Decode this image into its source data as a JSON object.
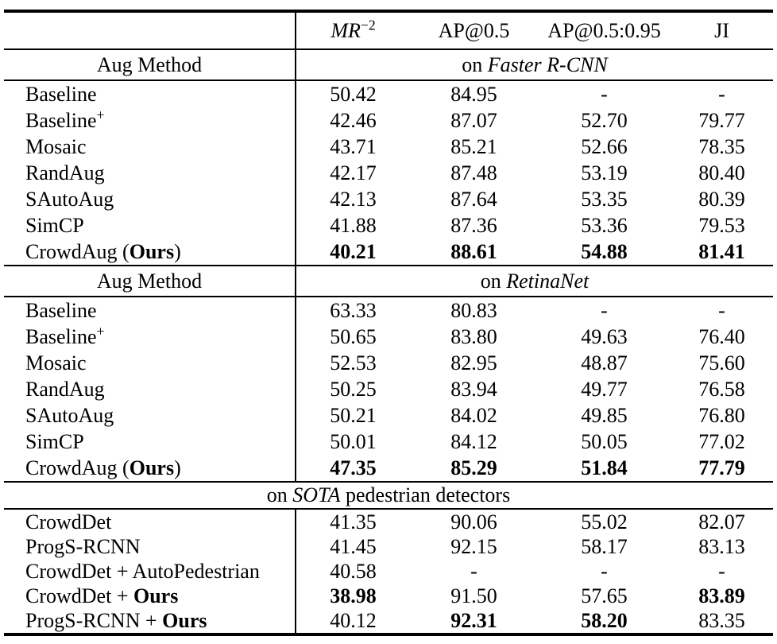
{
  "page": {
    "background": "#ffffff",
    "text_color": "#000000"
  },
  "table": {
    "metric_headers": [
      {
        "name": "col-mr",
        "segments": [
          {
            "t": "MR",
            "i": true
          },
          {
            "t": "−2",
            "sup": true
          }
        ]
      },
      {
        "name": "col-ap05",
        "segments": [
          {
            "t": "AP@0.5"
          }
        ]
      },
      {
        "name": "col-ap05095",
        "segments": [
          {
            "t": "AP@0.5:0.95"
          }
        ]
      },
      {
        "name": "col-ji",
        "segments": [
          {
            "t": "JI"
          }
        ]
      }
    ],
    "sections": [
      {
        "kind": "group",
        "left_header": "Aug Method",
        "right_header_segments": [
          {
            "t": "on "
          },
          {
            "t": "Faster R-CNN",
            "i": true
          }
        ],
        "rows": [
          {
            "method": [
              {
                "t": "Baseline"
              }
            ],
            "values": [
              {
                "t": "50.42"
              },
              {
                "t": "84.95"
              },
              {
                "t": "-"
              },
              {
                "t": "-"
              }
            ]
          },
          {
            "method": [
              {
                "t": "Baseline"
              },
              {
                "t": "+",
                "sup": true
              }
            ],
            "values": [
              {
                "t": "42.46"
              },
              {
                "t": "87.07"
              },
              {
                "t": "52.70"
              },
              {
                "t": "79.77"
              }
            ]
          },
          {
            "method": [
              {
                "t": "Mosaic"
              }
            ],
            "values": [
              {
                "t": "43.71"
              },
              {
                "t": "85.21"
              },
              {
                "t": "52.66"
              },
              {
                "t": "78.35"
              }
            ]
          },
          {
            "method": [
              {
                "t": "RandAug"
              }
            ],
            "values": [
              {
                "t": "42.17"
              },
              {
                "t": "87.48"
              },
              {
                "t": "53.19"
              },
              {
                "t": "80.40"
              }
            ]
          },
          {
            "method": [
              {
                "t": "SAutoAug"
              }
            ],
            "values": [
              {
                "t": "42.13"
              },
              {
                "t": "87.64"
              },
              {
                "t": "53.35"
              },
              {
                "t": "80.39"
              }
            ]
          },
          {
            "method": [
              {
                "t": "SimCP"
              }
            ],
            "values": [
              {
                "t": "41.88"
              },
              {
                "t": "87.36"
              },
              {
                "t": "53.36"
              },
              {
                "t": "79.53"
              }
            ]
          },
          {
            "method": [
              {
                "t": "CrowdAug ("
              },
              {
                "t": "Ours",
                "b": true
              },
              {
                "t": ")"
              }
            ],
            "values": [
              {
                "t": "40.21",
                "b": true
              },
              {
                "t": "88.61",
                "b": true
              },
              {
                "t": "54.88",
                "b": true
              },
              {
                "t": "81.41",
                "b": true
              }
            ]
          }
        ]
      },
      {
        "kind": "group",
        "left_header": "Aug Method",
        "right_header_segments": [
          {
            "t": "on "
          },
          {
            "t": "RetinaNet",
            "i": true
          }
        ],
        "rows": [
          {
            "method": [
              {
                "t": "Baseline"
              }
            ],
            "values": [
              {
                "t": "63.33"
              },
              {
                "t": "80.83"
              },
              {
                "t": "-"
              },
              {
                "t": "-"
              }
            ]
          },
          {
            "method": [
              {
                "t": "Baseline"
              },
              {
                "t": "+",
                "sup": true
              }
            ],
            "values": [
              {
                "t": "50.65"
              },
              {
                "t": "83.80"
              },
              {
                "t": "49.63"
              },
              {
                "t": "76.40"
              }
            ]
          },
          {
            "method": [
              {
                "t": "Mosaic"
              }
            ],
            "values": [
              {
                "t": "52.53"
              },
              {
                "t": "82.95"
              },
              {
                "t": "48.87"
              },
              {
                "t": "75.60"
              }
            ]
          },
          {
            "method": [
              {
                "t": "RandAug"
              }
            ],
            "values": [
              {
                "t": "50.25"
              },
              {
                "t": "83.94"
              },
              {
                "t": "49.77"
              },
              {
                "t": "76.58"
              }
            ]
          },
          {
            "method": [
              {
                "t": "SAutoAug"
              }
            ],
            "values": [
              {
                "t": "50.21"
              },
              {
                "t": "84.02"
              },
              {
                "t": "49.85"
              },
              {
                "t": "76.80"
              }
            ]
          },
          {
            "method": [
              {
                "t": "SimCP"
              }
            ],
            "values": [
              {
                "t": "50.01"
              },
              {
                "t": "84.12"
              },
              {
                "t": "50.05"
              },
              {
                "t": "77.02"
              }
            ]
          },
          {
            "method": [
              {
                "t": "CrowdAug ("
              },
              {
                "t": "Ours",
                "b": true
              },
              {
                "t": ")"
              }
            ],
            "values": [
              {
                "t": "47.35",
                "b": true
              },
              {
                "t": "85.29",
                "b": true
              },
              {
                "t": "51.84",
                "b": true
              },
              {
                "t": "77.79",
                "b": true
              }
            ]
          }
        ]
      },
      {
        "kind": "span",
        "span_header_segments": [
          {
            "t": "on "
          },
          {
            "t": "SOTA",
            "i": true
          },
          {
            "t": " pedestrian detectors"
          }
        ],
        "rows": [
          {
            "method": [
              {
                "t": "CrowdDet"
              }
            ],
            "values": [
              {
                "t": "41.35"
              },
              {
                "t": "90.06"
              },
              {
                "t": "55.02"
              },
              {
                "t": "82.07"
              }
            ]
          },
          {
            "method": [
              {
                "t": "ProgS-RCNN"
              }
            ],
            "values": [
              {
                "t": "41.45"
              },
              {
                "t": "92.15"
              },
              {
                "t": "58.17"
              },
              {
                "t": "83.13"
              }
            ]
          },
          {
            "method": [
              {
                "t": "CrowdDet + AutoPedestrian"
              }
            ],
            "values": [
              {
                "t": "40.58"
              },
              {
                "t": "-"
              },
              {
                "t": "-"
              },
              {
                "t": "-"
              }
            ]
          },
          {
            "method": [
              {
                "t": "CrowdDet + "
              },
              {
                "t": "Ours",
                "b": true
              }
            ],
            "values": [
              {
                "t": "38.98",
                "b": true
              },
              {
                "t": "91.50"
              },
              {
                "t": "57.65"
              },
              {
                "t": "83.89",
                "b": true
              }
            ]
          },
          {
            "method": [
              {
                "t": "ProgS-RCNN + "
              },
              {
                "t": "Ours",
                "b": true
              }
            ],
            "values": [
              {
                "t": "40.12"
              },
              {
                "t": "92.31",
                "b": true
              },
              {
                "t": "58.20",
                "b": true
              },
              {
                "t": "83.35"
              }
            ]
          }
        ]
      }
    ]
  }
}
